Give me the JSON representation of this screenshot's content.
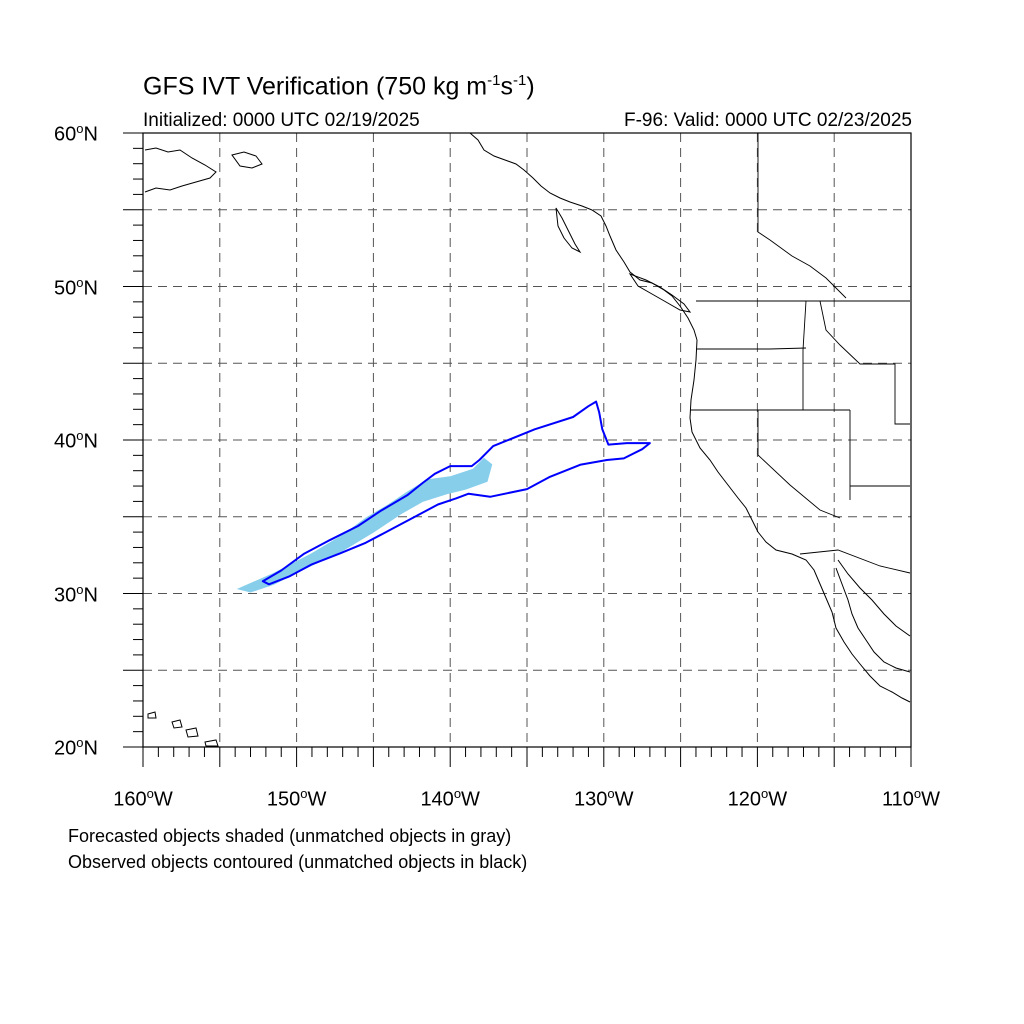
{
  "title": {
    "prefix": "GFS IVT Verification (750 kg m",
    "exp1": "-1",
    "mid": "s",
    "exp2": "-1",
    "suffix": ")"
  },
  "initialized": "Initialized: 0000 UTC 02/19/2025",
  "valid": "F-96: Valid: 0000 UTC 02/23/2025",
  "lat_labels": [
    {
      "value": 60,
      "text": "60",
      "deg": "o",
      "hem": "N"
    },
    {
      "value": 50,
      "text": "50",
      "deg": "o",
      "hem": "N"
    },
    {
      "value": 40,
      "text": "40",
      "deg": "o",
      "hem": "N"
    },
    {
      "value": 30,
      "text": "30",
      "deg": "o",
      "hem": "N"
    },
    {
      "value": 20,
      "text": "20",
      "deg": "o",
      "hem": "N"
    }
  ],
  "lon_labels": [
    {
      "value": -160,
      "text": "160",
      "deg": "o",
      "hem": "W"
    },
    {
      "value": -150,
      "text": "150",
      "deg": "o",
      "hem": "W"
    },
    {
      "value": -140,
      "text": "140",
      "deg": "o",
      "hem": "W"
    },
    {
      "value": -130,
      "text": "130",
      "deg": "o",
      "hem": "W"
    },
    {
      "value": -120,
      "text": "120",
      "deg": "o",
      "hem": "W"
    },
    {
      "value": -110,
      "text": "110",
      "deg": "o",
      "hem": "W"
    }
  ],
  "notes": {
    "forecast": "Forecasted objects shaded (unmatched objects in gray)",
    "observed": "Observed objects contoured (unmatched objects in black)"
  },
  "map": {
    "lon_range": [
      -160,
      -110
    ],
    "lat_range": [
      20,
      60
    ],
    "grid_spacing_deg": 5,
    "forecast_fill_color": "#87ceeb",
    "observed_contour_color": "#0000ff"
  },
  "forecast_object": [
    [
      -153.8,
      30.3
    ],
    [
      -151.5,
      31.3
    ],
    [
      -149.0,
      32.6
    ],
    [
      -147.0,
      33.8
    ],
    [
      -145.5,
      34.9
    ],
    [
      -144.0,
      35.8
    ],
    [
      -142.8,
      36.6
    ],
    [
      -141.5,
      37.4
    ],
    [
      -140.0,
      37.6
    ],
    [
      -138.5,
      38.1
    ],
    [
      -137.8,
      38.8
    ],
    [
      -137.3,
      38.4
    ],
    [
      -137.6,
      37.3
    ],
    [
      -139.0,
      36.8
    ],
    [
      -140.2,
      36.5
    ],
    [
      -141.8,
      36.0
    ],
    [
      -143.2,
      35.2
    ],
    [
      -145.0,
      34.0
    ],
    [
      -147.0,
      32.8
    ],
    [
      -149.5,
      31.6
    ],
    [
      -151.5,
      30.6
    ],
    [
      -153.0,
      30.1
    ]
  ],
  "observed_object": [
    [
      -152.2,
      30.8
    ],
    [
      -151.0,
      31.5
    ],
    [
      -149.5,
      32.6
    ],
    [
      -147.8,
      33.5
    ],
    [
      -146.0,
      34.4
    ],
    [
      -144.5,
      35.4
    ],
    [
      -142.8,
      36.4
    ],
    [
      -141.8,
      37.2
    ],
    [
      -141.0,
      37.8
    ],
    [
      -140.0,
      38.3
    ],
    [
      -138.6,
      38.3
    ],
    [
      -138.1,
      38.7
    ],
    [
      -137.2,
      39.6
    ],
    [
      -134.5,
      40.7
    ],
    [
      -132.0,
      41.5
    ],
    [
      -131.0,
      42.2
    ],
    [
      -130.5,
      42.5
    ],
    [
      -130.3,
      41.8
    ],
    [
      -130.1,
      40.7
    ],
    [
      -129.7,
      39.7
    ],
    [
      -128.5,
      39.8
    ],
    [
      -127.0,
      39.8
    ],
    [
      -127.5,
      39.4
    ],
    [
      -128.7,
      38.8
    ],
    [
      -129.8,
      38.7
    ],
    [
      -131.5,
      38.4
    ],
    [
      -133.5,
      37.6
    ],
    [
      -135.0,
      36.8
    ],
    [
      -137.4,
      36.3
    ],
    [
      -138.8,
      36.5
    ],
    [
      -139.6,
      36.2
    ],
    [
      -140.8,
      35.8
    ],
    [
      -142.3,
      35.0
    ],
    [
      -143.8,
      34.2
    ],
    [
      -145.5,
      33.3
    ],
    [
      -147.2,
      32.6
    ],
    [
      -149.0,
      31.9
    ],
    [
      -150.5,
      31.1
    ],
    [
      -151.8,
      30.6
    ]
  ]
}
